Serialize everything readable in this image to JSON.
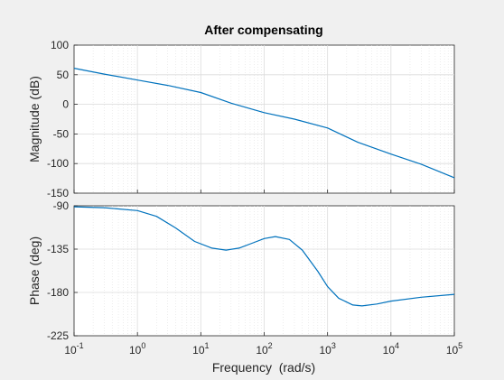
{
  "chart_data": [
    {
      "type": "line",
      "title": "After compensating",
      "xlabel": "",
      "ylabel": "Magnitude (dB)",
      "x_scale": "log",
      "xlim": [
        0.1,
        100000
      ],
      "ylim": [
        -150,
        100
      ],
      "yticks": [
        "100",
        "50",
        "0",
        "-50",
        "-100",
        "-150"
      ],
      "grid": true,
      "color": "#0072bd",
      "series": [
        {
          "x": [
            0.1,
            0.3,
            1,
            3,
            10,
            30,
            100,
            300,
            1000,
            3000,
            10000,
            30000,
            100000
          ],
          "y": [
            61,
            51,
            41,
            32,
            20,
            2,
            -14,
            -25,
            -40,
            -64,
            -84,
            -101,
            -124
          ]
        }
      ]
    },
    {
      "type": "line",
      "title": "",
      "xlabel": "Frequency  (rad/s)",
      "ylabel": "Phase (deg)",
      "x_scale": "log",
      "xlim": [
        0.1,
        100000
      ],
      "ylim": [
        -225,
        -90
      ],
      "yticks": [
        "-90",
        "-135",
        "-180",
        "-225"
      ],
      "xticks": [
        {
          "base": "10",
          "exp": "-1"
        },
        {
          "base": "10",
          "exp": "0"
        },
        {
          "base": "10",
          "exp": "1"
        },
        {
          "base": "10",
          "exp": "2"
        },
        {
          "base": "10",
          "exp": "3"
        },
        {
          "base": "10",
          "exp": "4"
        },
        {
          "base": "10",
          "exp": "5"
        }
      ],
      "grid": true,
      "color": "#0072bd",
      "series": [
        {
          "x": [
            0.1,
            0.3,
            1,
            2,
            4,
            8,
            15,
            25,
            40,
            70,
            100,
            150,
            250,
            400,
            700,
            1000,
            1500,
            2500,
            3500,
            6000,
            10000,
            30000,
            100000
          ],
          "y": [
            -91,
            -92,
            -95,
            -101,
            -113,
            -127,
            -134,
            -136,
            -134,
            -128,
            -124,
            -122,
            -125,
            -136,
            -158,
            -174,
            -186,
            -193,
            -194,
            -192,
            -189,
            -185,
            -182
          ]
        }
      ]
    }
  ]
}
